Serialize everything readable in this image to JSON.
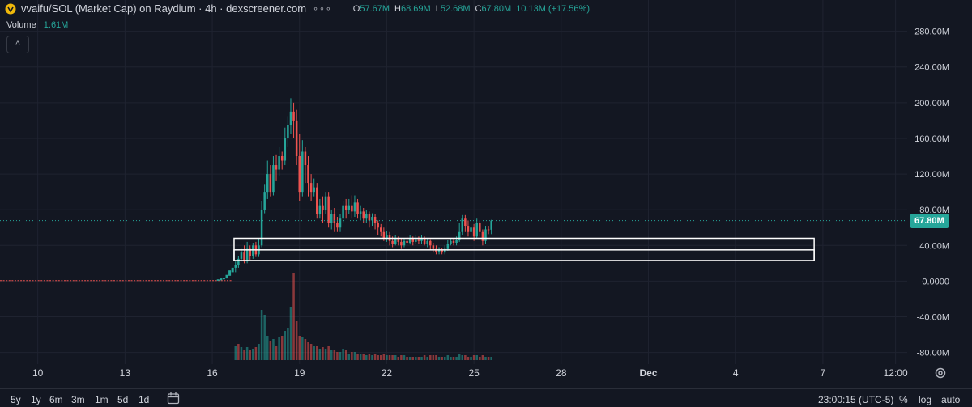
{
  "header": {
    "title": "vvaifu/SOL (Market Cap) on Raydium · 4h · dexscreener.com",
    "ohlc": [
      {
        "k": "O",
        "v": "57.67M"
      },
      {
        "k": "H",
        "v": "68.69M"
      },
      {
        "k": "L",
        "v": "52.68M"
      },
      {
        "k": "C",
        "v": "67.80M"
      },
      {
        "k": "",
        "v": "10.13M (+17.56%)"
      }
    ]
  },
  "volume": {
    "label": "Volume",
    "value": "1.61M"
  },
  "current_price_label": "67.80M",
  "colors": {
    "up": "#26a69a",
    "down": "#ef5350",
    "bg": "#131722",
    "grid": "#1f2330",
    "axis_text": "#d1d4dc"
  },
  "chart_data": {
    "type": "candlestick",
    "y_ticks": [
      "280.00M",
      "240.00M",
      "200.00M",
      "160.00M",
      "120.00M",
      "80.00M",
      "40.00M",
      "0.0000",
      "-40.00M",
      "-80.00M"
    ],
    "y_tick_values": [
      280,
      240,
      200,
      160,
      120,
      80,
      40,
      0,
      -40,
      -80
    ],
    "ylim": [
      -93,
      315
    ],
    "x_ticks": [
      "10",
      "13",
      "16",
      "19",
      "22",
      "25",
      "28",
      "Dec",
      "4",
      "7",
      "12:00"
    ],
    "x_tick_days": [
      10,
      13,
      16,
      19,
      22,
      25,
      28,
      31,
      34,
      37,
      39.5
    ],
    "xlim_days": [
      8.7,
      39.9
    ],
    "last_value": 67.8,
    "candles": [
      [
        16.8,
        15,
        18,
        10,
        22
      ],
      [
        16.9,
        18,
        25,
        15,
        28
      ],
      [
        17.0,
        25,
        32,
        22,
        36
      ],
      [
        17.1,
        32,
        22,
        20,
        40
      ],
      [
        17.2,
        22,
        36,
        20,
        44
      ],
      [
        17.3,
        36,
        28,
        24,
        40
      ],
      [
        17.4,
        28,
        40,
        25,
        43
      ],
      [
        17.5,
        40,
        30,
        27,
        44
      ],
      [
        17.6,
        30,
        40,
        27,
        48
      ],
      [
        17.7,
        40,
        80,
        38,
        90
      ],
      [
        17.8,
        80,
        100,
        76,
        108
      ],
      [
        17.9,
        100,
        120,
        92,
        135
      ],
      [
        18.0,
        120,
        100,
        95,
        130
      ],
      [
        18.1,
        100,
        130,
        96,
        140
      ],
      [
        18.2,
        130,
        125,
        112,
        142
      ],
      [
        18.3,
        125,
        140,
        118,
        150
      ],
      [
        18.4,
        140,
        135,
        125,
        145
      ],
      [
        18.5,
        135,
        160,
        130,
        172
      ],
      [
        18.6,
        160,
        175,
        150,
        185
      ],
      [
        18.7,
        175,
        190,
        165,
        205
      ],
      [
        18.8,
        190,
        180,
        160,
        200
      ],
      [
        18.9,
        180,
        140,
        130,
        192
      ],
      [
        19.0,
        140,
        100,
        90,
        165
      ],
      [
        19.1,
        100,
        145,
        95,
        158
      ],
      [
        19.2,
        145,
        130,
        110,
        150
      ],
      [
        19.3,
        130,
        110,
        95,
        140
      ],
      [
        19.4,
        110,
        100,
        90,
        120
      ],
      [
        19.5,
        100,
        105,
        95,
        115
      ],
      [
        19.6,
        105,
        75,
        70,
        110
      ],
      [
        19.7,
        75,
        85,
        70,
        92
      ],
      [
        19.8,
        85,
        80,
        65,
        95
      ],
      [
        19.9,
        80,
        95,
        75,
        100
      ],
      [
        20.0,
        95,
        65,
        60,
        100
      ],
      [
        20.1,
        65,
        75,
        58,
        80
      ],
      [
        20.2,
        75,
        65,
        55,
        82
      ],
      [
        20.3,
        65,
        60,
        55,
        72
      ],
      [
        20.4,
        60,
        70,
        55,
        75
      ],
      [
        20.5,
        70,
        85,
        65,
        90
      ],
      [
        20.6,
        85,
        80,
        70,
        92
      ],
      [
        20.7,
        80,
        85,
        75,
        92
      ],
      [
        20.8,
        85,
        78,
        70,
        96
      ],
      [
        20.9,
        78,
        88,
        72,
        96
      ],
      [
        21.0,
        88,
        75,
        70,
        92
      ],
      [
        21.1,
        75,
        78,
        68,
        85
      ],
      [
        21.2,
        78,
        70,
        65,
        82
      ],
      [
        21.3,
        70,
        75,
        65,
        80
      ],
      [
        21.4,
        75,
        68,
        60,
        78
      ],
      [
        21.5,
        68,
        72,
        62,
        76
      ],
      [
        21.6,
        72,
        65,
        58,
        75
      ],
      [
        21.7,
        65,
        60,
        52,
        68
      ],
      [
        21.8,
        60,
        55,
        50,
        64
      ],
      [
        21.9,
        55,
        48,
        45,
        60
      ],
      [
        22.0,
        48,
        52,
        44,
        56
      ],
      [
        22.1,
        52,
        45,
        40,
        55
      ],
      [
        22.2,
        45,
        42,
        38,
        50
      ],
      [
        22.3,
        42,
        48,
        40,
        52
      ],
      [
        22.4,
        48,
        44,
        40,
        50
      ],
      [
        22.5,
        44,
        40,
        36,
        48
      ],
      [
        22.6,
        40,
        45,
        38,
        48
      ],
      [
        22.7,
        45,
        43,
        40,
        50
      ],
      [
        22.8,
        43,
        48,
        41,
        52
      ],
      [
        22.9,
        48,
        44,
        40,
        50
      ],
      [
        23.0,
        44,
        47,
        42,
        52
      ],
      [
        23.1,
        47,
        45,
        42,
        50
      ],
      [
        23.2,
        45,
        48,
        42,
        52
      ],
      [
        23.3,
        48,
        42,
        40,
        50
      ],
      [
        23.4,
        42,
        45,
        38,
        48
      ],
      [
        23.5,
        45,
        40,
        35,
        47
      ],
      [
        23.6,
        40,
        36,
        32,
        43
      ],
      [
        23.7,
        36,
        33,
        30,
        40
      ],
      [
        23.8,
        33,
        35,
        30,
        38
      ],
      [
        23.9,
        35,
        32,
        30,
        37
      ],
      [
        24.0,
        32,
        36,
        30,
        40
      ],
      [
        24.1,
        36,
        42,
        34,
        46
      ],
      [
        24.2,
        42,
        45,
        40,
        48
      ],
      [
        24.3,
        45,
        43,
        40,
        48
      ],
      [
        24.4,
        43,
        46,
        40,
        50
      ],
      [
        24.5,
        46,
        55,
        44,
        65
      ],
      [
        24.6,
        55,
        70,
        52,
        74
      ],
      [
        24.7,
        70,
        62,
        55,
        74
      ],
      [
        24.8,
        62,
        55,
        50,
        68
      ],
      [
        24.9,
        55,
        60,
        50,
        64
      ],
      [
        25.0,
        60,
        50,
        45,
        64
      ],
      [
        25.1,
        50,
        65,
        48,
        70
      ],
      [
        25.2,
        65,
        55,
        50,
        68
      ],
      [
        25.3,
        55,
        45,
        40,
        58
      ],
      [
        25.4,
        45,
        58,
        42,
        62
      ],
      [
        25.5,
        58,
        57.67,
        52.68,
        62
      ],
      [
        25.6,
        57.67,
        67.8,
        52.68,
        68.69
      ]
    ],
    "volume_bars": [
      [
        16.8,
        9,
        1
      ],
      [
        16.9,
        10,
        0
      ],
      [
        17.0,
        8,
        1
      ],
      [
        17.1,
        6,
        0
      ],
      [
        17.2,
        8,
        1
      ],
      [
        17.3,
        6,
        0
      ],
      [
        17.4,
        7,
        1
      ],
      [
        17.5,
        8,
        0
      ],
      [
        17.6,
        10,
        1
      ],
      [
        17.7,
        31,
        1
      ],
      [
        17.8,
        28,
        1
      ],
      [
        17.9,
        15,
        1
      ],
      [
        18.0,
        12,
        0
      ],
      [
        18.1,
        13,
        1
      ],
      [
        18.2,
        9,
        0
      ],
      [
        18.3,
        14,
        1
      ],
      [
        18.4,
        15,
        0
      ],
      [
        18.5,
        18,
        1
      ],
      [
        18.6,
        20,
        1
      ],
      [
        18.7,
        33,
        1
      ],
      [
        18.8,
        54,
        0
      ],
      [
        18.9,
        24,
        0
      ],
      [
        19.0,
        15,
        0
      ],
      [
        19.1,
        14,
        1
      ],
      [
        19.2,
        13,
        0
      ],
      [
        19.3,
        11,
        0
      ],
      [
        19.4,
        10,
        0
      ],
      [
        19.5,
        9,
        1
      ],
      [
        19.6,
        9,
        0
      ],
      [
        19.7,
        7,
        1
      ],
      [
        19.8,
        8,
        0
      ],
      [
        19.9,
        7,
        1
      ],
      [
        20.0,
        9,
        0
      ],
      [
        20.1,
        6,
        1
      ],
      [
        20.2,
        6,
        0
      ],
      [
        20.3,
        5,
        0
      ],
      [
        20.4,
        5,
        1
      ],
      [
        20.5,
        7,
        1
      ],
      [
        20.6,
        6,
        0
      ],
      [
        20.7,
        4,
        1
      ],
      [
        20.8,
        5,
        0
      ],
      [
        20.9,
        5,
        1
      ],
      [
        21.0,
        4,
        0
      ],
      [
        21.1,
        4,
        1
      ],
      [
        21.2,
        4,
        0
      ],
      [
        21.3,
        3,
        1
      ],
      [
        21.4,
        4,
        0
      ],
      [
        21.5,
        3,
        1
      ],
      [
        21.6,
        4,
        0
      ],
      [
        21.7,
        3,
        0
      ],
      [
        21.8,
        3,
        0
      ],
      [
        21.9,
        4,
        0
      ],
      [
        22.0,
        3,
        1
      ],
      [
        22.1,
        3,
        0
      ],
      [
        22.2,
        3,
        0
      ],
      [
        22.3,
        3,
        1
      ],
      [
        22.4,
        2,
        0
      ],
      [
        22.5,
        3,
        0
      ],
      [
        22.6,
        3,
        1
      ],
      [
        22.7,
        2,
        0
      ],
      [
        22.8,
        2,
        1
      ],
      [
        22.9,
        2,
        0
      ],
      [
        23.0,
        2,
        1
      ],
      [
        23.1,
        2,
        0
      ],
      [
        23.2,
        2,
        1
      ],
      [
        23.3,
        3,
        0
      ],
      [
        23.4,
        2,
        1
      ],
      [
        23.5,
        3,
        0
      ],
      [
        23.6,
        3,
        0
      ],
      [
        23.7,
        3,
        0
      ],
      [
        23.8,
        2,
        1
      ],
      [
        23.9,
        2,
        0
      ],
      [
        24.0,
        2,
        1
      ],
      [
        24.1,
        3,
        1
      ],
      [
        24.2,
        2,
        1
      ],
      [
        24.3,
        2,
        0
      ],
      [
        24.4,
        2,
        1
      ],
      [
        24.5,
        4,
        1
      ],
      [
        24.6,
        3,
        1
      ],
      [
        24.7,
        3,
        0
      ],
      [
        24.8,
        2,
        0
      ],
      [
        24.9,
        2,
        1
      ],
      [
        25.0,
        3,
        0
      ],
      [
        25.1,
        3,
        1
      ],
      [
        25.2,
        2,
        0
      ],
      [
        25.3,
        3,
        0
      ],
      [
        25.4,
        2,
        1
      ],
      [
        25.5,
        2,
        0
      ],
      [
        25.6,
        2,
        1
      ]
    ],
    "pre_launch_level_days": [
      8.7,
      16.6
    ],
    "annotation_boxes": [
      {
        "x0": 16.75,
        "x1": 36.7,
        "y0": 23,
        "y1": 48
      },
      {
        "x0": 16.75,
        "x1": 36.7,
        "y0": 23,
        "y1": 35
      }
    ]
  },
  "toolbar": {
    "timeframes": [
      "5y",
      "1y",
      "6m",
      "3m",
      "1m",
      "5d",
      "1d"
    ],
    "clock": "23:00:15 (UTC-5)",
    "percent_label": "%",
    "log_label": "log",
    "auto_label": "auto"
  }
}
